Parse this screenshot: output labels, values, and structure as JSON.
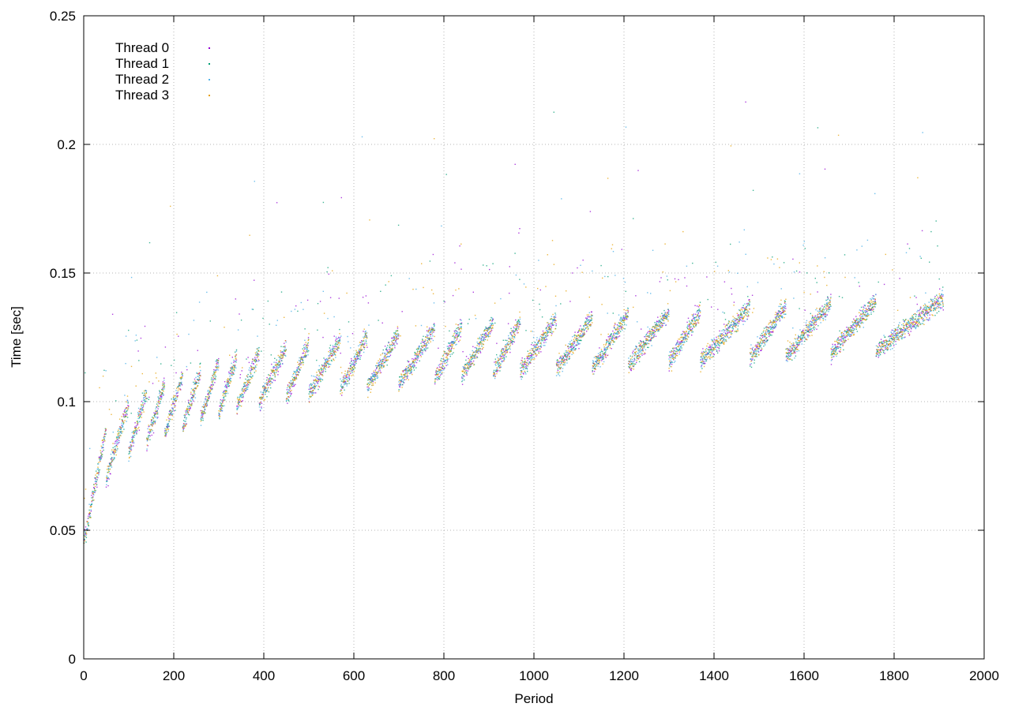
{
  "chart_data": {
    "type": "scatter",
    "title": "",
    "xlabel": "Period",
    "ylabel": "Time [sec]",
    "xlim": [
      0,
      2000
    ],
    "ylim": [
      0,
      0.25
    ],
    "x_ticks": [
      "0",
      "200",
      "400",
      "600",
      "800",
      "1000",
      "1200",
      "1400",
      "1600",
      "1800",
      "2000"
    ],
    "y_ticks": [
      "0",
      "0.05",
      "0.1",
      "0.15",
      "0.2",
      "0.25"
    ],
    "grid": true,
    "legend_position": "top-left",
    "period_count": 1910,
    "trend": {
      "x": [
        0,
        50,
        100,
        150,
        200,
        300,
        400,
        500,
        600,
        700,
        800,
        900,
        1000,
        1100,
        1200,
        1300,
        1400,
        1500,
        1600,
        1700,
        1800,
        1910
      ],
      "base": [
        0.055,
        0.08,
        0.09,
        0.095,
        0.099,
        0.106,
        0.11,
        0.113,
        0.115,
        0.117,
        0.119,
        0.121,
        0.122,
        0.123,
        0.124,
        0.125,
        0.126,
        0.127,
        0.128,
        0.129,
        0.13,
        0.13
      ]
    },
    "resets": [
      0,
      50,
      100,
      140,
      180,
      220,
      260,
      300,
      340,
      390,
      450,
      500,
      570,
      630,
      700,
      780,
      840,
      910,
      970,
      1050,
      1130,
      1210,
      1300,
      1370,
      1480,
      1560,
      1660,
      1760,
      1910
    ],
    "series": [
      {
        "name": "Thread 0",
        "color": "#9400d3"
      },
      {
        "name": "Thread 1",
        "color": "#009e73"
      },
      {
        "name": "Thread 2",
        "color": "#56b4e9"
      },
      {
        "name": "Thread 3",
        "color": "#e69f00"
      }
    ]
  }
}
